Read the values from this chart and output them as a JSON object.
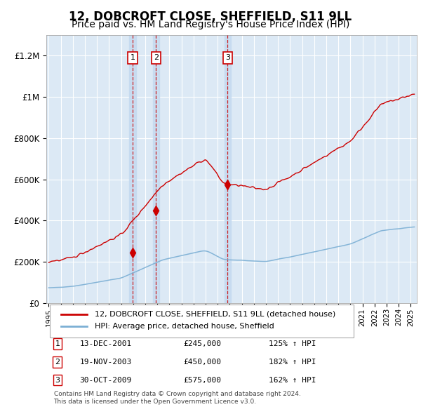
{
  "title": "12, DOBCROFT CLOSE, SHEFFIELD, S11 9LL",
  "subtitle": "Price paid vs. HM Land Registry's House Price Index (HPI)",
  "title_fontsize": 12,
  "subtitle_fontsize": 10,
  "ylim": [
    0,
    1300000
  ],
  "xlim_start": 1994.8,
  "xlim_end": 2025.5,
  "plot_bg_color": "#dce9f5",
  "fig_bg_color": "#ffffff",
  "grid_color": "#ffffff",
  "red_line_color": "#cc0000",
  "blue_line_color": "#7bafd4",
  "sale_marker_color": "#cc0000",
  "sale_dates": [
    2001.95,
    2003.89,
    2009.83
  ],
  "sale_prices": [
    245000,
    450000,
    575000
  ],
  "sale_labels": [
    "1",
    "2",
    "3"
  ],
  "sale_date_strings": [
    "13-DEC-2001",
    "19-NOV-2003",
    "30-OCT-2009"
  ],
  "sale_price_strings": [
    "£245,000",
    "£450,000",
    "£575,000"
  ],
  "sale_hpi_strings": [
    "125% ↑ HPI",
    "182% ↑ HPI",
    "162% ↑ HPI"
  ],
  "legend_line1": "12, DOBCROFT CLOSE, SHEFFIELD, S11 9LL (detached house)",
  "legend_line2": "HPI: Average price, detached house, Sheffield",
  "footer_line1": "Contains HM Land Registry data © Crown copyright and database right 2024.",
  "footer_line2": "This data is licensed under the Open Government Licence v3.0.",
  "ytick_labels": [
    "£0",
    "£200K",
    "£400K",
    "£600K",
    "£800K",
    "£1M",
    "£1.2M"
  ],
  "ytick_values": [
    0,
    200000,
    400000,
    600000,
    800000,
    1000000,
    1200000
  ]
}
